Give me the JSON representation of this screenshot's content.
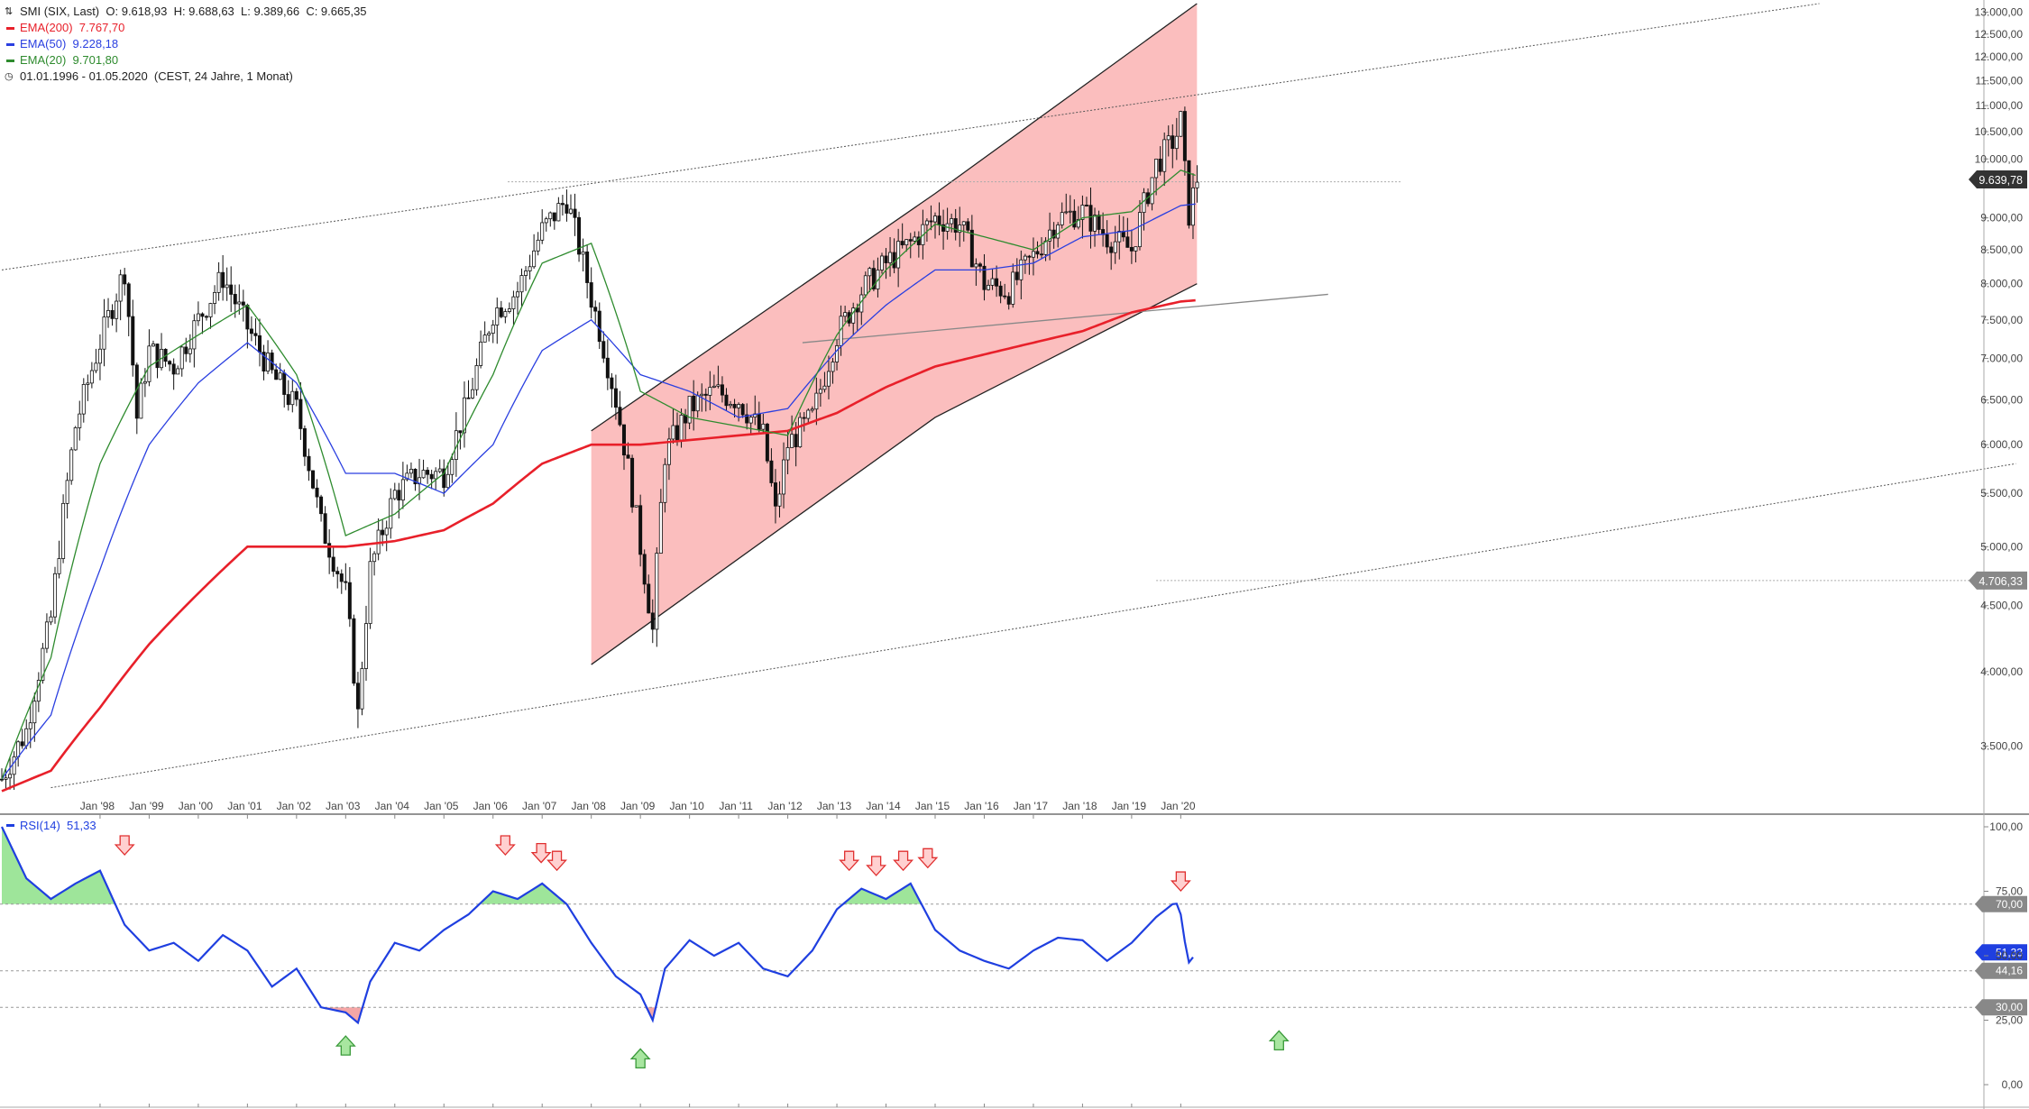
{
  "header": {
    "instrument_icon": "chart-type-icon",
    "instrument": "SMI (SIX, Last)",
    "open": "O: 9.618,93",
    "high": "H: 9.688,63",
    "low": "L: 9.389,66",
    "close": "C: 9.665,35",
    "ema200_label": "EMA(200)",
    "ema200_value": "7.767,70",
    "ema200_color": "#e8202a",
    "ema50_label": "EMA(50)",
    "ema50_value": "9.228,18",
    "ema50_color": "#2a3fe0",
    "ema20_label": "EMA(20)",
    "ema20_value": "9.701,80",
    "ema20_color": "#2e8b2e",
    "range_icon": "clock-icon",
    "range": "01.01.1996 - 01.05.2020",
    "range_info": "(CEST, 24 Jahre, 1 Monat)"
  },
  "rsi_header": {
    "label": "RSI(14)",
    "value": "51,33",
    "color": "#1f3fe0"
  },
  "chart_data": [
    {
      "type": "candlestick",
      "title": "SMI (SIX, Last)",
      "interval": "1 Monat",
      "x_ticks": [
        "Jan '98",
        "Jan '99",
        "Jan '00",
        "Jan '01",
        "Jan '02",
        "Jan '03",
        "Jan '04",
        "Jan '05",
        "Jan '06",
        "Jan '07",
        "Jan '08",
        "Jan '09",
        "Jan '10",
        "Jan '11",
        "Jan '12",
        "Jan '13",
        "Jan '14",
        "Jan '15",
        "Jan '16",
        "Jan '17",
        "Jan '18",
        "Jan '19",
        "Jan '20"
      ],
      "y_ticks": [
        "3.500,00",
        "4.000,00",
        "4.500,00",
        "5.000,00",
        "5.500,00",
        "6.000,00",
        "6.500,00",
        "7.000,00",
        "7.500,00",
        "8.000,00",
        "8.500,00",
        "9.000,00",
        "10.000,00",
        "10.500,00",
        "11.000,00",
        "11.500,00",
        "12.000,00",
        "12.500,00",
        "13.000,00"
      ],
      "ylim": [
        3150,
        13200
      ],
      "y_scale": "log",
      "price_labels": [
        {
          "text": "9.639,78",
          "value": 9640,
          "color": "#333333"
        },
        {
          "text": "4.706,33",
          "value": 4706,
          "color": "#888888"
        }
      ],
      "series": [
        {
          "name": "SMI",
          "type": "candles",
          "x": [
            1996.0,
            1996.5,
            1997.0,
            1997.5,
            1998.0,
            1998.5,
            1998.75,
            1999.0,
            1999.5,
            2000.0,
            2000.5,
            2001.0,
            2001.5,
            2002.0,
            2002.5,
            2003.0,
            2003.25,
            2003.5,
            2004.0,
            2004.5,
            2005.0,
            2005.5,
            2006.0,
            2006.5,
            2007.0,
            2007.5,
            2008.0,
            2008.5,
            2009.0,
            2009.25,
            2009.5,
            2010.0,
            2010.5,
            2011.0,
            2011.5,
            2011.75,
            2012.0,
            2012.5,
            2013.0,
            2013.5,
            2014.0,
            2014.5,
            2015.0,
            2015.5,
            2016.0,
            2016.5,
            2017.0,
            2017.5,
            2018.0,
            2018.5,
            2019.0,
            2019.5,
            2019.9,
            2020.0,
            2020.15,
            2020.33
          ],
          "values": [
            3300,
            3600,
            4400,
            6200,
            7200,
            8200,
            6300,
            7100,
            6900,
            7500,
            8100,
            7400,
            6800,
            6400,
            5200,
            4600,
            3700,
            4800,
            5500,
            5700,
            5700,
            6500,
            7600,
            7900,
            8800,
            9300,
            7800,
            6500,
            5000,
            4300,
            5900,
            6400,
            6600,
            6500,
            6100,
            5300,
            6000,
            6300,
            7300,
            7900,
            8300,
            8600,
            9000,
            8900,
            8000,
            7900,
            8400,
            9000,
            9100,
            8700,
            8500,
            9900,
            10400,
            10700,
            9000,
            9665
          ]
        },
        {
          "name": "EMA(200)",
          "color": "#e8202a",
          "x": [
            1996.0,
            1997.0,
            1998.0,
            1999.0,
            2000.0,
            2001.0,
            2002.0,
            2003.0,
            2004.0,
            2005.0,
            2006.0,
            2007.0,
            2008.0,
            2009.0,
            2010.0,
            2011.0,
            2012.0,
            2013.0,
            2014.0,
            2015.0,
            2016.0,
            2017.0,
            2018.0,
            2019.0,
            2020.0,
            2020.33
          ],
          "values": [
            3230,
            3350,
            3750,
            4200,
            4600,
            5000,
            5000,
            5000,
            5050,
            5150,
            5400,
            5800,
            6000,
            6000,
            6050,
            6100,
            6150,
            6350,
            6650,
            6900,
            7050,
            7200,
            7350,
            7600,
            7750,
            7768
          ]
        },
        {
          "name": "EMA(50)",
          "color": "#2a3fe0",
          "x": [
            1996.0,
            1997.0,
            1998.0,
            1999.0,
            2000.0,
            2001.0,
            2002.0,
            2003.0,
            2004.0,
            2005.0,
            2006.0,
            2007.0,
            2008.0,
            2009.0,
            2010.0,
            2011.0,
            2012.0,
            2013.0,
            2014.0,
            2015.0,
            2016.0,
            2017.0,
            2018.0,
            2019.0,
            2020.0,
            2020.33
          ],
          "values": [
            3300,
            3700,
            4800,
            6000,
            6700,
            7200,
            6700,
            5700,
            5700,
            5500,
            6000,
            7100,
            7500,
            6800,
            6600,
            6300,
            6400,
            7100,
            7700,
            8200,
            8200,
            8300,
            8700,
            8800,
            9200,
            9228
          ]
        },
        {
          "name": "EMA(20)",
          "color": "#2e8b2e",
          "x": [
            1996.0,
            1997.0,
            1998.0,
            1999.0,
            2000.0,
            2001.0,
            2002.0,
            2003.0,
            2004.0,
            2005.0,
            2006.0,
            2007.0,
            2008.0,
            2009.0,
            2010.0,
            2011.0,
            2012.0,
            2013.0,
            2014.0,
            2015.0,
            2016.0,
            2017.0,
            2018.0,
            2019.0,
            2020.0,
            2020.33
          ],
          "values": [
            3300,
            4100,
            5800,
            6900,
            7300,
            7700,
            6800,
            5100,
            5300,
            5700,
            6800,
            8300,
            8600,
            6600,
            6300,
            6200,
            6100,
            7300,
            8200,
            8900,
            8700,
            8500,
            9000,
            9100,
            9800,
            9702
          ]
        }
      ],
      "drawings": {
        "channel_fill_color": "#f9a8a8",
        "channel_upper": [
          [
            2008.0,
            6150
          ],
          [
            2015.0,
            9400
          ],
          [
            2020.33,
            13200
          ]
        ],
        "channel_lower": [
          [
            2008.0,
            4050
          ],
          [
            2015.0,
            6300
          ],
          [
            2020.33,
            8000
          ]
        ],
        "trend_lines": [
          {
            "style": "dotted",
            "from": [
              1996.0,
              8200
            ],
            "to": [
              2033.0,
              13200
            ]
          },
          {
            "style": "dotted",
            "from": [
              1997.0,
              3250
            ],
            "to": [
              2037.0,
              5800
            ]
          },
          {
            "style": "solid",
            "from": [
              2012.3,
              7200
            ],
            "to": [
              2023.0,
              7850
            ]
          }
        ],
        "horizontal_lines": [
          {
            "style": "dotted",
            "value": 9600,
            "from": 2006.3,
            "to": 2024.5
          },
          {
            "style": "dotted",
            "value": 4706,
            "from": 2019.5,
            "to": 2037.0
          }
        ]
      }
    },
    {
      "type": "line",
      "title": "RSI(14)",
      "ylim": [
        0,
        100
      ],
      "y_ticks": [
        "0,00",
        "25,00",
        "50,00",
        "75,00",
        "100,00"
      ],
      "reference_lines": [
        {
          "value": 70,
          "label": "70,00"
        },
        {
          "value": 44.16,
          "label": "44,16"
        },
        {
          "value": 30,
          "label": "30,00"
        }
      ],
      "current_label": "51,33",
      "series": [
        {
          "name": "RSI(14)",
          "color": "#1f3fe0",
          "x": [
            1996.0,
            1996.5,
            1997.0,
            1997.5,
            1998.0,
            1998.5,
            1999.0,
            1999.5,
            2000.0,
            2000.5,
            2001.0,
            2001.5,
            2002.0,
            2002.5,
            2003.0,
            2003.25,
            2003.5,
            2004.0,
            2004.5,
            2005.0,
            2005.5,
            2006.0,
            2006.5,
            2007.0,
            2007.5,
            2008.0,
            2008.5,
            2009.0,
            2009.25,
            2009.5,
            2010.0,
            2010.5,
            2011.0,
            2011.5,
            2012.0,
            2012.5,
            2013.0,
            2013.5,
            2014.0,
            2014.5,
            2015.0,
            2015.5,
            2016.0,
            2016.5,
            2017.0,
            2017.5,
            2018.0,
            2018.5,
            2019.0,
            2019.5,
            2019.9,
            2020.0,
            2020.15,
            2020.33
          ],
          "values": [
            100,
            80,
            72,
            78,
            83,
            62,
            52,
            55,
            48,
            58,
            52,
            38,
            45,
            30,
            28,
            24,
            40,
            55,
            52,
            60,
            66,
            75,
            72,
            78,
            70,
            55,
            42,
            35,
            25,
            45,
            56,
            50,
            55,
            45,
            42,
            52,
            68,
            76,
            72,
            78,
            60,
            52,
            48,
            45,
            52,
            57,
            56,
            48,
            55,
            65,
            71,
            66,
            47,
            51.3
          ]
        }
      ],
      "markers": [
        {
          "type": "down-arrow",
          "x": 1998.5,
          "value": 93
        },
        {
          "type": "down-arrow",
          "x": 2006.25,
          "value": 93
        },
        {
          "type": "down-arrow",
          "x": 2006.98,
          "value": 90
        },
        {
          "type": "down-arrow",
          "x": 2007.3,
          "value": 87
        },
        {
          "type": "down-arrow",
          "x": 2013.25,
          "value": 87
        },
        {
          "type": "down-arrow",
          "x": 2013.8,
          "value": 85
        },
        {
          "type": "down-arrow",
          "x": 2014.35,
          "value": 87
        },
        {
          "type": "down-arrow",
          "x": 2014.85,
          "value": 88
        },
        {
          "type": "down-arrow",
          "x": 2020.0,
          "value": 79
        },
        {
          "type": "up-arrow",
          "x": 2003.0,
          "value": 15
        },
        {
          "type": "up-arrow",
          "x": 2009.0,
          "value": 10
        },
        {
          "type": "up-arrow",
          "x": 2022.0,
          "value": 17
        }
      ]
    }
  ]
}
